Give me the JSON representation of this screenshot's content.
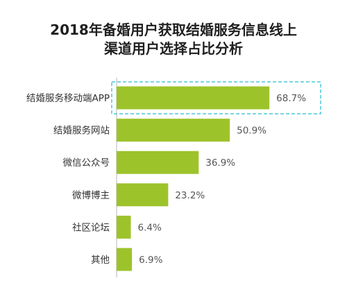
{
  "title_lines": [
    "2018年备婚用户获取结婚服务信息线上",
    "渠道用户选择占比分析"
  ],
  "chart_data": {
    "type": "bar",
    "orientation": "horizontal",
    "title": "2018年备婚用户获取结婚服务信息线上渠道用户选择占比分析",
    "categories": [
      "结婚服务移动端APP",
      "结婚服务网站",
      "微信公众号",
      "微博博主",
      "社区论坛",
      "其他"
    ],
    "values": [
      68.7,
      50.9,
      36.9,
      23.2,
      6.4,
      6.9
    ],
    "value_labels": [
      "68.7%",
      "50.9%",
      "36.9%",
      "23.2%",
      "6.4%",
      "6.9%"
    ],
    "xlim": [
      0,
      100
    ],
    "grid": false,
    "highlighted_category": "结婚服务移动端APP",
    "bar_color": "#9dc32b",
    "highlight_border_color": "#4cc5dc"
  }
}
